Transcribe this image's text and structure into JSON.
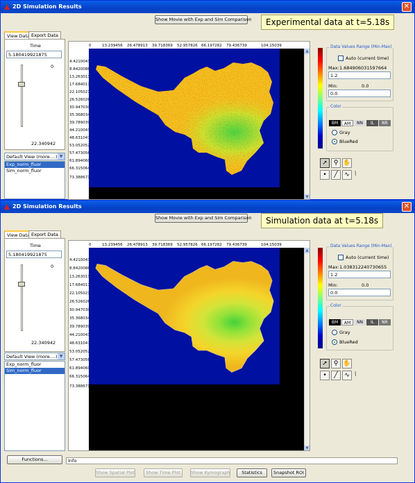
{
  "windows": [
    {
      "id": "top",
      "title": "2D Simulation Results",
      "movie_button": "Show Movie with Exp and Sim Comparison",
      "callout": "Experimental data at t=5.18s",
      "tabs": [
        "View Data",
        "Export Data"
      ],
      "time_label": "Time",
      "time_value": "5.180419921875",
      "slider_max_label": "0",
      "slider_min_label": "22.340942",
      "view_select": "Default View (more....)",
      "variables": [
        "Exp_norm_fluor",
        "Sim_norm_fluor"
      ],
      "selected_variable_index": 0,
      "x_ticks": [
        "0",
        "13.239456",
        "26.478913",
        "39.718369",
        "52.957826",
        "66.197282",
        "79.436739",
        "104.15039"
      ],
      "y_ticks": [
        "4.42100433",
        "8.84200866",
        "13.2630130",
        "17.6840173",
        "22.1050216",
        "26.5260260",
        "30.9470303",
        "35.3680346",
        "39.7890390",
        "44.2100433",
        "48.6310476",
        "53.0520520",
        "57.4730563",
        "61.8940606",
        "66.3150649",
        "73.3886715"
      ],
      "range_title": "Data Values Range (Min-Max)",
      "auto_label": "Auto (current time)",
      "max_label": "Max:",
      "max_auto_value": "1.684906031597664",
      "max_value": "1.2",
      "min_label": "Min:",
      "min_auto_value": "0.0",
      "min_value": "0.0",
      "color_title": "Color",
      "colormaps": [
        "BM",
        "AM",
        "NN",
        "IL",
        "NR"
      ],
      "gray_label": "Gray",
      "bluered_label": "BlueRed",
      "dataset": "experimental"
    },
    {
      "id": "bottom",
      "title": "2D Simulation Results",
      "movie_button": "Show Movie with Exp and Sim Comparison",
      "callout": "Simulation data at t=5.18s",
      "tabs": [
        "View Data",
        "Export Data"
      ],
      "time_label": "Time",
      "time_value": "5.180419921875",
      "slider_max_label": "0",
      "slider_min_label": "22.340942",
      "view_select": "Default View (more....)",
      "variables": [
        "Exp_norm_fluor",
        "Sim_norm_fluor"
      ],
      "selected_variable_index": 1,
      "x_ticks": [
        "0",
        "13.239456",
        "26.478913",
        "39.718369",
        "52.957826",
        "66.197282",
        "79.436739",
        "104.15039"
      ],
      "y_ticks": [
        "4.42100433",
        "8.84200866",
        "13.2630130",
        "17.6840173",
        "22.1050216",
        "26.5260260",
        "30.9470303",
        "35.3680346",
        "39.7890390",
        "44.2100433",
        "48.6310476",
        "53.0520520",
        "57.4730563",
        "61.8940606",
        "66.3150649",
        "73.3886715"
      ],
      "range_title": "Data Values Range (Min-Max)",
      "auto_label": "Auto (current time)",
      "max_label": "Max:",
      "max_auto_value": "1.038312240730655",
      "max_value": "1.2",
      "min_label": "Min:",
      "min_auto_value": "0.0",
      "min_value": "0.0",
      "color_title": "Color",
      "colormaps": [
        "BM",
        "AM",
        "NN",
        "IL",
        "NR"
      ],
      "gray_label": "Gray",
      "bluered_label": "BlueRed",
      "dataset": "simulation",
      "functions_button": "Functions...",
      "info_text": "Info",
      "bottom_buttons": [
        "Show Spatial Plot",
        "Show Time Plot",
        "Show Kymograph",
        "Statistics",
        "Snapshot ROI"
      ],
      "bottom_buttons_enabled": [
        false,
        false,
        false,
        true,
        true
      ]
    }
  ],
  "colors": {
    "title_bar": "#0a5ee8",
    "selection": "#316ac5",
    "background_blue": "#0010a0",
    "callout_bg": "#ffffc2"
  },
  "icons": [
    "app-icon",
    "close-icon",
    "arrow-tool-icon",
    "zoom-tool-icon",
    "pan-tool-icon",
    "point-tool-icon",
    "line-tool-icon",
    "curve-tool-icon",
    "polyline-tool-icon"
  ]
}
